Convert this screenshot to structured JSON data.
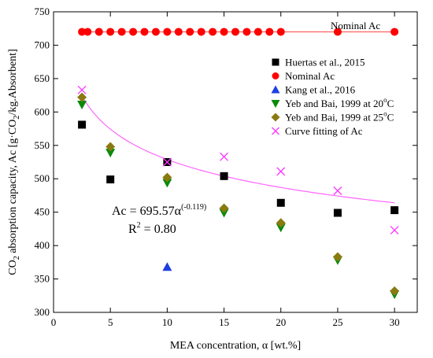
{
  "chart_data": {
    "type": "scatter",
    "xlabel": "MEA concentration, α [wt.%]",
    "ylabel_parts": [
      "CO",
      "2",
      " absorption capacity, Ac [g·CO",
      "2",
      "/kg.Absorbent]"
    ],
    "xlim": [
      0,
      32
    ],
    "ylim": [
      300,
      750
    ],
    "xticks": [
      0,
      5,
      10,
      15,
      20,
      25,
      30
    ],
    "yticks": [
      300,
      350,
      400,
      450,
      500,
      550,
      600,
      650,
      700,
      750
    ],
    "grid": false,
    "legend_position": "top-right",
    "series": [
      {
        "name": "Huertas et al., 2015",
        "marker": "square",
        "color": "#000000",
        "points": [
          [
            2.5,
            581
          ],
          [
            5,
            499
          ],
          [
            10,
            525
          ],
          [
            15,
            504
          ],
          [
            20,
            464
          ],
          [
            25,
            449
          ],
          [
            30,
            453
          ]
        ]
      },
      {
        "name": "Nominal Ac",
        "marker": "circle",
        "color": "#ff0000",
        "points": [
          [
            2.5,
            720
          ],
          [
            3,
            720
          ],
          [
            4,
            720
          ],
          [
            5,
            720
          ],
          [
            6,
            720
          ],
          [
            7,
            720
          ],
          [
            8,
            720
          ],
          [
            9,
            720
          ],
          [
            10,
            720
          ],
          [
            11,
            720
          ],
          [
            12,
            720
          ],
          [
            13,
            720
          ],
          [
            14,
            720
          ],
          [
            15,
            720
          ],
          [
            16,
            720
          ],
          [
            17,
            720
          ],
          [
            18,
            720
          ],
          [
            19,
            720
          ],
          [
            20,
            720
          ],
          [
            25,
            720
          ],
          [
            30,
            720
          ]
        ],
        "line": [
          [
            2.5,
            720
          ],
          [
            30,
            720
          ]
        ],
        "line_color": "#ff6060"
      },
      {
        "name": "Kang et al., 2016",
        "marker": "triangle-up",
        "color": "#1f3fe0",
        "points": [
          [
            10,
            368
          ]
        ]
      },
      {
        "name_parts": [
          "Yeb and Bai, 1999 at 20",
          "o",
          "C"
        ],
        "marker": "triangle-down",
        "color": "#0a8a0a",
        "points": [
          [
            2.5,
            611
          ],
          [
            5,
            539
          ],
          [
            10,
            494
          ],
          [
            15,
            449
          ],
          [
            20,
            427
          ],
          [
            25,
            378
          ],
          [
            30,
            327
          ]
        ]
      },
      {
        "name_parts": [
          "Yeb and Bai, 1999 at 25",
          "o",
          "C"
        ],
        "marker": "diamond",
        "color": "#8a7a12",
        "points": [
          [
            2.5,
            622
          ],
          [
            5,
            548
          ],
          [
            10,
            502
          ],
          [
            15,
            456
          ],
          [
            20,
            434
          ],
          [
            25,
            383
          ],
          [
            30,
            332
          ]
        ]
      },
      {
        "name": "Curve fitting of Ac",
        "marker": "cross",
        "color": "#ff33ff",
        "points": [
          [
            2.5,
            633
          ],
          [
            10,
            525
          ],
          [
            15,
            533
          ],
          [
            20,
            511
          ],
          [
            25,
            482
          ],
          [
            30,
            423
          ]
        ]
      }
    ],
    "fit_curve": {
      "color": "#ff66ff",
      "coefficient": 695.57,
      "exponent": -0.119,
      "x_range": [
        2.5,
        30
      ]
    },
    "annotations": {
      "nominal_label": "Nominal Ac",
      "equation_base": "Ac = 695.57α",
      "equation_exponent": "(-0.119)",
      "r2_text": "R",
      "r2_sup": "2",
      "r2_value": " = 0.80"
    }
  }
}
